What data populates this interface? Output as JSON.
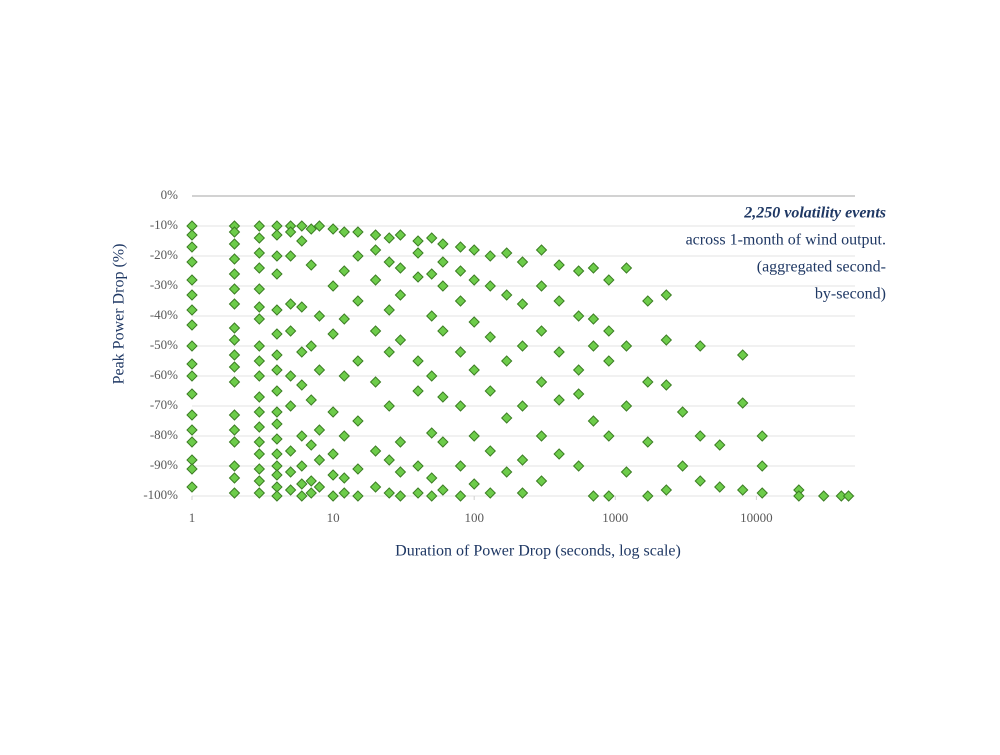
{
  "chart_data": {
    "type": "scatter",
    "x_title": "Duration of Power Drop (seconds, log scale)",
    "y_title": "Peak Power Drop (%)",
    "annotations": [
      "2,250 volatility events",
      "across 1-month of wind output.",
      "(aggregated second-",
      "by-second)"
    ],
    "color": "#6dcc4a",
    "edge_color": "#3c7d24",
    "xlog": true,
    "grid": true,
    "xlim": [
      1,
      50000
    ],
    "xticks": [
      1,
      10,
      100,
      1000,
      10000
    ],
    "ylim": [
      -100,
      0
    ],
    "yticks": [
      {
        "value": 0,
        "label": "0%"
      },
      {
        "value": -10,
        "label": "-10%"
      },
      {
        "value": -20,
        "label": "-20%"
      },
      {
        "value": -30,
        "label": "-30%"
      },
      {
        "value": -40,
        "label": "-40%"
      },
      {
        "value": -50,
        "label": "-50%"
      },
      {
        "value": -60,
        "label": "-60%"
      },
      {
        "value": -70,
        "label": "-70%"
      },
      {
        "value": -80,
        "label": "-80%"
      },
      {
        "value": -90,
        "label": "-90%"
      },
      {
        "value": -100,
        "label": "-100%"
      }
    ],
    "x": [
      1,
      1,
      1,
      1,
      1,
      1,
      1,
      1,
      1,
      1,
      1,
      1,
      1,
      1,
      1,
      1,
      1,
      1,
      2,
      2,
      2,
      2,
      2,
      2,
      2,
      2,
      2,
      2,
      2,
      2,
      2,
      2,
      2,
      2,
      2,
      2,
      3,
      3,
      3,
      3,
      3,
      3,
      3,
      3,
      3,
      3,
      3,
      3,
      3,
      3,
      3,
      3,
      3,
      3,
      4,
      4,
      4,
      4,
      4,
      4,
      4,
      4,
      4,
      4,
      4,
      4,
      4,
      4,
      4,
      4,
      4,
      5,
      5,
      5,
      5,
      5,
      5,
      5,
      5,
      5,
      5,
      6,
      6,
      6,
      6,
      6,
      6,
      6,
      6,
      6,
      7,
      7,
      7,
      7,
      7,
      7,
      7,
      8,
      8,
      8,
      8,
      8,
      8,
      10,
      10,
      10,
      10,
      10,
      10,
      10,
      12,
      12,
      12,
      12,
      12,
      12,
      12,
      15,
      15,
      15,
      15,
      15,
      15,
      15,
      20,
      20,
      20,
      20,
      20,
      20,
      20,
      25,
      25,
      25,
      25,
      25,
      25,
      25,
      30,
      30,
      30,
      30,
      30,
      30,
      30,
      40,
      40,
      40,
      40,
      40,
      40,
      40,
      50,
      50,
      50,
      50,
      50,
      50,
      50,
      60,
      60,
      60,
      60,
      60,
      60,
      60,
      80,
      80,
      80,
      80,
      80,
      80,
      80,
      100,
      100,
      100,
      100,
      100,
      100,
      130,
      130,
      130,
      130,
      130,
      130,
      170,
      170,
      170,
      170,
      170,
      220,
      220,
      220,
      220,
      220,
      220,
      300,
      300,
      300,
      300,
      300,
      300,
      400,
      400,
      400,
      400,
      400,
      550,
      550,
      550,
      550,
      550,
      700,
      700,
      700,
      700,
      700,
      900,
      900,
      900,
      900,
      900,
      1200,
      1200,
      1200,
      1200,
      1700,
      1700,
      1700,
      1700,
      2300,
      2300,
      2300,
      2300,
      3000,
      3000,
      4000,
      4000,
      4000,
      5500,
      5500,
      8000,
      8000,
      8000,
      11000,
      11000,
      11000,
      20000,
      20000,
      30000,
      40000,
      45000
    ],
    "values": [
      -10,
      -13,
      -17,
      -22,
      -28,
      -33,
      -38,
      -43,
      -50,
      -56,
      -60,
      -66,
      -73,
      -78,
      -82,
      -88,
      -91,
      -97,
      -10,
      -12,
      -16,
      -21,
      -26,
      -31,
      -36,
      -44,
      -48,
      -53,
      -57,
      -62,
      -73,
      -78,
      -82,
      -90,
      -94,
      -99,
      -10,
      -14,
      -19,
      -24,
      -31,
      -37,
      -41,
      -50,
      -55,
      -60,
      -67,
      -72,
      -77,
      -82,
      -86,
      -91,
      -95,
      -99,
      -10,
      -13,
      -20,
      -26,
      -38,
      -46,
      -53,
      -58,
      -65,
      -72,
      -76,
      -81,
      -86,
      -90,
      -93,
      -97,
      -100,
      -10,
      -12,
      -20,
      -36,
      -45,
      -60,
      -70,
      -85,
      -92,
      -98,
      -10,
      -15,
      -37,
      -52,
      -63,
      -80,
      -90,
      -96,
      -100,
      -11,
      -23,
      -50,
      -68,
      -83,
      -95,
      -99,
      -10,
      -40,
      -58,
      -78,
      -88,
      -97,
      -11,
      -30,
      -46,
      -72,
      -86,
      -93,
      -100,
      -12,
      -25,
      -41,
      -60,
      -80,
      -94,
      -99,
      -12,
      -20,
      -35,
      -55,
      -75,
      -91,
      -100,
      -13,
      -18,
      -28,
      -45,
      -62,
      -85,
      -97,
      -14,
      -22,
      -38,
      -52,
      -70,
      -88,
      -99,
      -13,
      -24,
      -33,
      -48,
      -82,
      -92,
      -100,
      -15,
      -19,
      -27,
      -55,
      -65,
      -90,
      -99,
      -14,
      -26,
      -40,
      -60,
      -79,
      -94,
      -100,
      -16,
      -22,
      -30,
      -45,
      -67,
      -82,
      -98,
      -17,
      -25,
      -35,
      -52,
      -70,
      -90,
      -100,
      -18,
      -28,
      -42,
      -58,
      -80,
      -96,
      -20,
      -30,
      -47,
      -65,
      -85,
      -99,
      -19,
      -33,
      -55,
      -74,
      -92,
      -22,
      -36,
      -50,
      -70,
      -88,
      -99,
      -18,
      -30,
      -45,
      -62,
      -80,
      -95,
      -23,
      -35,
      -52,
      -68,
      -86,
      -25,
      -40,
      -58,
      -66,
      -90,
      -24,
      -41,
      -50,
      -75,
      -100,
      -28,
      -45,
      -55,
      -80,
      -100,
      -24,
      -50,
      -70,
      -92,
      -35,
      -62,
      -82,
      -100,
      -33,
      -48,
      -63,
      -98,
      -72,
      -90,
      -50,
      -80,
      -95,
      -83,
      -97,
      -53,
      -69,
      -98,
      -80,
      -90,
      -99,
      -98,
      -100,
      -100,
      -100,
      -100
    ]
  }
}
